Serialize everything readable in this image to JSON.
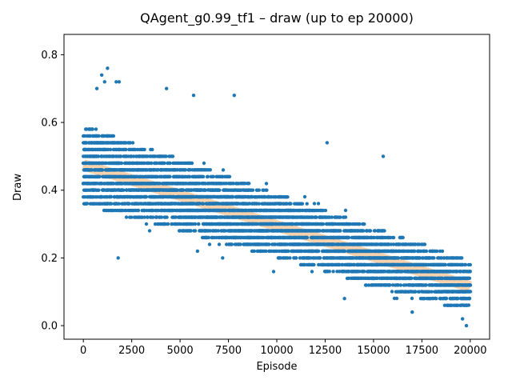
{
  "chart_data": {
    "type": "scatter",
    "title": "QAgent_g0.99_tf1 – draw (up to ep 20000)",
    "xlabel": "Episode",
    "ylabel": "Draw",
    "xlim": [
      -1000,
      21000
    ],
    "ylim": [
      -0.04,
      0.86
    ],
    "xticks": [
      0,
      2500,
      5000,
      7500,
      10000,
      12500,
      15000,
      17500,
      20000
    ],
    "yticks": [
      0.0,
      0.2,
      0.4,
      0.6,
      0.8
    ],
    "ytick_labels": [
      "0.0",
      "0.2",
      "0.4",
      "0.6",
      "0.8"
    ],
    "grid": false,
    "legend": false,
    "point_color": "#1f77b4",
    "trend_color": "#f5cba0",
    "n_episodes": 20000,
    "y_resolution": 0.02,
    "trend": {
      "x": [
        0,
        20000
      ],
      "y": [
        0.475,
        0.115
      ]
    },
    "band_halfwidth": {
      "x": [
        0,
        20000
      ],
      "y": [
        0.13,
        0.085
      ]
    },
    "notable_points": [
      {
        "x": 1250,
        "y": 0.76
      },
      {
        "x": 950,
        "y": 0.74
      },
      {
        "x": 1100,
        "y": 0.72
      },
      {
        "x": 1850,
        "y": 0.72
      },
      {
        "x": 1700,
        "y": 0.72
      },
      {
        "x": 4300,
        "y": 0.7
      },
      {
        "x": 700,
        "y": 0.7
      },
      {
        "x": 7800,
        "y": 0.68
      },
      {
        "x": 5700,
        "y": 0.68
      },
      {
        "x": 1800,
        "y": 0.2
      },
      {
        "x": 7200,
        "y": 0.2
      },
      {
        "x": 5900,
        "y": 0.22
      },
      {
        "x": 13500,
        "y": 0.08
      },
      {
        "x": 15500,
        "y": 0.5
      },
      {
        "x": 12600,
        "y": 0.54
      },
      {
        "x": 19800,
        "y": 0.0
      },
      {
        "x": 19600,
        "y": 0.02
      },
      {
        "x": 17000,
        "y": 0.04
      }
    ]
  }
}
